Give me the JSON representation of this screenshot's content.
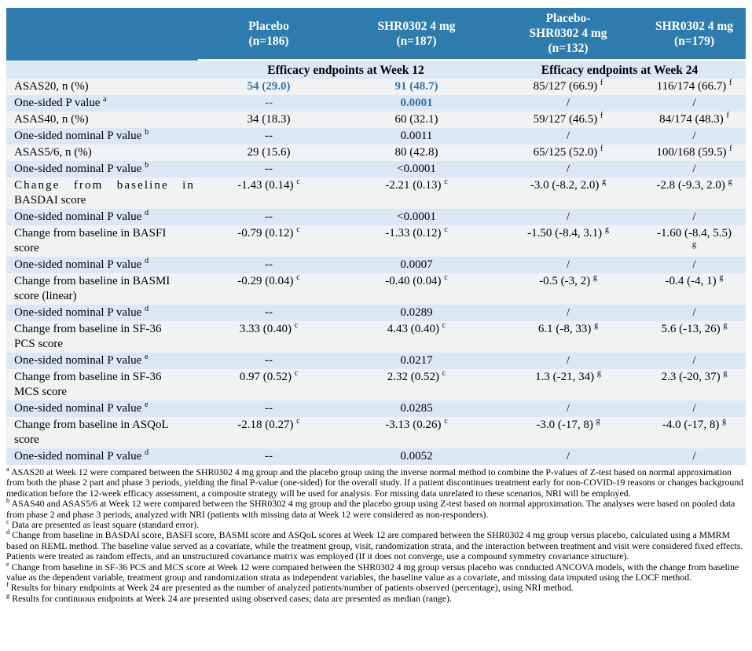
{
  "colors": {
    "header_bg": "#2e7bad",
    "header_text": "#ffffff",
    "stripe_light": "#f1f2f4",
    "stripe_blue": "#dbe7f4",
    "accent_text": "#2e74ad"
  },
  "table": {
    "columns": [
      {
        "lines": [
          "Placebo",
          "(n=186)"
        ]
      },
      {
        "lines": [
          "SHR0302 4 mg",
          "(n=187)"
        ]
      },
      {
        "lines": [
          "Placebo-",
          "SHR0302 4 mg",
          "(n=132)"
        ]
      },
      {
        "lines": [
          "SHR0302 4 mg",
          "(n=179)"
        ]
      }
    ],
    "section_headers": [
      "Efficacy endpoints at Week 12",
      "Efficacy endpoints at Week 24"
    ],
    "rows": [
      {
        "label": "ASAS20, n (%)",
        "cells": [
          {
            "t": "54 (29.0)",
            "b": true
          },
          {
            "t": "91 (48.7)",
            "b": true
          },
          {
            "t": "85/127 (66.9)",
            "s": "f"
          },
          {
            "t": "116/174 (66.7)",
            "s": "f"
          }
        ]
      },
      {
        "label": "One-sided P value",
        "sup": "a",
        "cells": [
          {
            "t": "--",
            "b": true
          },
          {
            "t": "0.0001",
            "b": true
          },
          {
            "t": "/"
          },
          {
            "t": "/"
          }
        ]
      },
      {
        "label": "ASAS40, n (%)",
        "cells": [
          {
            "t": "34 (18.3)"
          },
          {
            "t": "60 (32.1)"
          },
          {
            "t": "59/127 (46.5)",
            "s": "f"
          },
          {
            "t": "84/174 (48.3)",
            "s": "f"
          }
        ]
      },
      {
        "label": "One-sided nominal P value",
        "sup": "b",
        "cells": [
          {
            "t": "--"
          },
          {
            "t": "0.0011"
          },
          {
            "t": "/"
          },
          {
            "t": "/"
          }
        ]
      },
      {
        "label": "ASAS5/6, n (%)",
        "cells": [
          {
            "t": "29 (15.6)"
          },
          {
            "t": "80 (42.8)"
          },
          {
            "t": "65/125 (52.0)",
            "s": "f"
          },
          {
            "t": "100/168 (59.5)",
            "s": "f"
          }
        ]
      },
      {
        "label": "One-sided nominal P value",
        "sup": "b",
        "cells": [
          {
            "t": "--"
          },
          {
            "t": "<0.0001"
          },
          {
            "t": "/"
          },
          {
            "t": "/"
          }
        ]
      },
      {
        "lines": [
          "Change from baseline in",
          "BASDAI score"
        ],
        "spread_first": true,
        "cells": [
          {
            "t": "-1.43 (0.14)",
            "s": "c"
          },
          {
            "t": "-2.21 (0.13)",
            "s": "c"
          },
          {
            "t": "-3.0 (-8.2, 2.0)",
            "s": "g"
          },
          {
            "t": "-2.8 (-9.3, 2.0)",
            "s": "g"
          }
        ]
      },
      {
        "label": "One-sided nominal P value",
        "sup": "d",
        "cells": [
          {
            "t": "--"
          },
          {
            "t": "<0.0001"
          },
          {
            "t": "/"
          },
          {
            "t": "/"
          }
        ]
      },
      {
        "lines": [
          "Change from baseline in BASFI",
          "score"
        ],
        "cells": [
          {
            "t": "-0.79 (0.12)",
            "s": "c"
          },
          {
            "t": "-1.33 (0.12)",
            "s": "c"
          },
          {
            "t": "-1.50 (-8.4, 3.1)",
            "s": "g"
          },
          {
            "t": "-1.60 (-8.4, 5.5)",
            "s": "g",
            "wrap": true
          }
        ]
      },
      {
        "label": "One-sided nominal P value",
        "sup": "d",
        "cells": [
          {
            "t": "--"
          },
          {
            "t": "0.0007"
          },
          {
            "t": "/"
          },
          {
            "t": "/"
          }
        ]
      },
      {
        "lines": [
          "Change from baseline in BASMI",
          "score (linear)"
        ],
        "cells": [
          {
            "t": "-0.29 (0.04)",
            "s": "c"
          },
          {
            "t": "-0.40 (0.04)",
            "s": "c"
          },
          {
            "t": "-0.5 (-3, 2)",
            "s": "g"
          },
          {
            "t": "-0.4 (-4, 1)",
            "s": "g"
          }
        ]
      },
      {
        "label": "One-sided nominal P value",
        "sup": "d",
        "cells": [
          {
            "t": "--"
          },
          {
            "t": "0.0289"
          },
          {
            "t": "/"
          },
          {
            "t": "/"
          }
        ]
      },
      {
        "lines": [
          "Change from baseline in SF-36",
          "PCS score"
        ],
        "cells": [
          {
            "t": "3.33 (0.40)",
            "s": "c"
          },
          {
            "t": "4.43 (0.40)",
            "s": "c"
          },
          {
            "t": "6.1 (-8, 33)",
            "s": "g"
          },
          {
            "t": "5.6 (-13, 26)",
            "s": "g"
          }
        ]
      },
      {
        "label": "One-sided nominal P value",
        "sup": "e",
        "cells": [
          {
            "t": "--"
          },
          {
            "t": "0.0217"
          },
          {
            "t": "/"
          },
          {
            "t": "/"
          }
        ]
      },
      {
        "lines": [
          "Change from baseline in SF-36",
          "MCS score"
        ],
        "cells": [
          {
            "t": "0.97 (0.52)",
            "s": "c"
          },
          {
            "t": "2.32 (0.52)",
            "s": "c"
          },
          {
            "t": "1.3 (-21, 34)",
            "s": "g"
          },
          {
            "t": "2.3 (-20, 37)",
            "s": "g"
          }
        ]
      },
      {
        "label": "One-sided nominal P value",
        "sup": "e",
        "cells": [
          {
            "t": "--"
          },
          {
            "t": "0.0285"
          },
          {
            "t": "/"
          },
          {
            "t": "/"
          }
        ]
      },
      {
        "lines": [
          "Change from baseline in ASQoL",
          "score"
        ],
        "cells": [
          {
            "t": "-2.18 (0.27)",
            "s": "c"
          },
          {
            "t": "-3.13 (0.26)",
            "s": "c"
          },
          {
            "t": "-3.0 (-17, 8)",
            "s": "g"
          },
          {
            "t": "-4.0 (-17, 8)",
            "s": "g"
          }
        ]
      },
      {
        "label": "One-sided nominal P value",
        "sup": "d",
        "cells": [
          {
            "t": "--"
          },
          {
            "t": "0.0052"
          },
          {
            "t": "/"
          },
          {
            "t": "/"
          }
        ]
      }
    ],
    "footnotes": [
      {
        "marker": "a",
        "text": "ASAS20 at Week 12 were compared between the SHR0302 4 mg group and the placebo group using the inverse normal method to combine the P-values of Z-test based on normal approximation from both the phase 2 part and phase 3 periods, yielding the final P-value (one-sided) for the overall study. If a patient discontinues treatment early for non-COVID-19 reasons or changes background medication before the 12-week efficacy assessment, a composite strategy will be used for analysis. For missing data unrelated to these scenarios, NRI will be employed."
      },
      {
        "marker": "b",
        "text": "ASAS40 and ASAS5/6 at Week 12 were compared between the SHR0302 4 mg group and the placebo group using Z-test based on normal approximation. The analyses were based on pooled data from phase 2 and phase 3 periods, analyzed with NRI (patients with missing data at Week 12 were considered as non-responders)."
      },
      {
        "marker": "c",
        "text": "Data are presented as least square (standard error)."
      },
      {
        "marker": "d",
        "text": "Change from baseline in BASDAI score, BASFI score, BASMI score and ASQoL scores at Week 12 are compared between the SHR0302 4 mg group versus placebo, calculated using a MMRM based on REML method. The baseline value served as a covariate, while the treatment group, visit, randomization strata, and the interaction between treatment and visit were considered fixed effects. Patients were treated as random effects, and an unstructured covariance matrix was employed (If it does not converge, use a compound symmetry covariance structure)."
      },
      {
        "marker": "e",
        "text": "Change from baseline in SF-36 PCS and MCS score at Week 12 were compared between the SHR0302 4 mg group versus placebo was conducted ANCOVA models, with the change from baseline value as the dependent variable, treatment group and randomization strata as independent variables, the baseline value as a covariate, and missing data imputed using the LOCF method."
      },
      {
        "marker": "f",
        "text": "Results for binary endpoints at Week 24 are presented as the number of analyzed patients/number of patients observed (percentage), using NRI method."
      },
      {
        "marker": "g",
        "text": "Results for continuous endpoints at Week 24 are presented using observed cases; data are presented as median (range)."
      }
    ]
  }
}
